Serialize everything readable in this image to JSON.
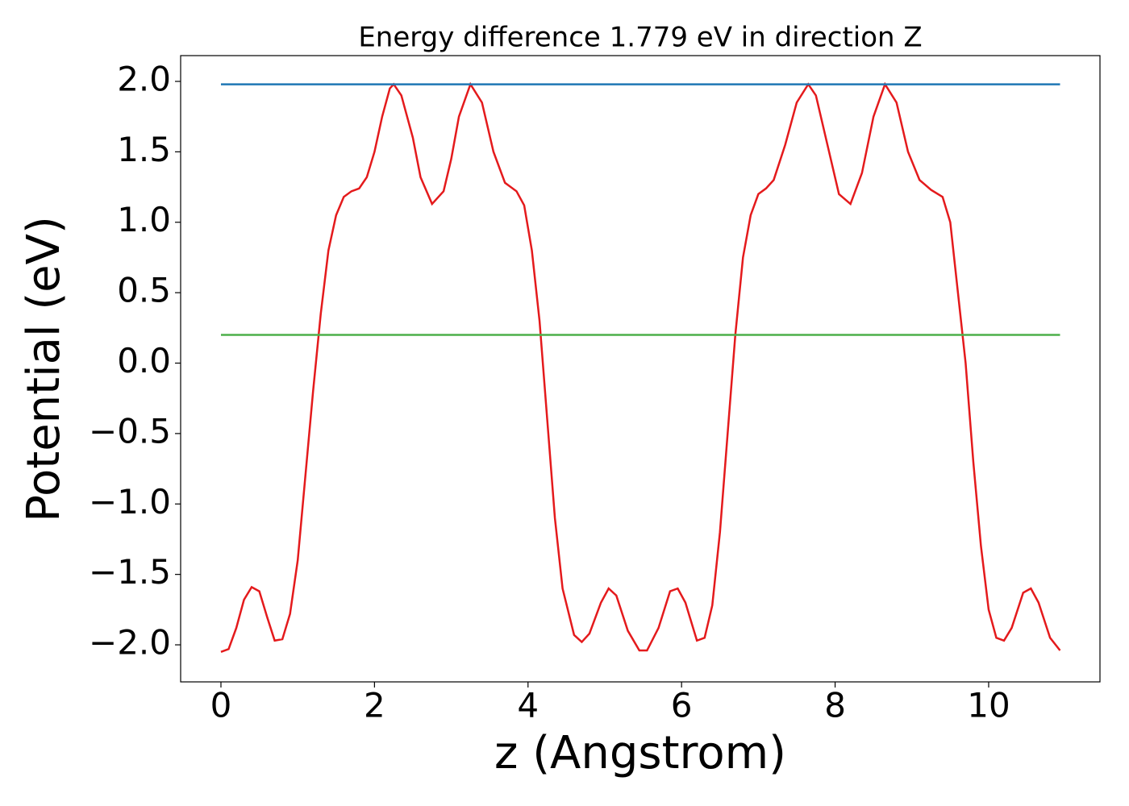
{
  "chart_data": {
    "type": "line",
    "title": "Energy difference 1.779 eV in direction Z",
    "x_label": "z (Angstrom)",
    "y_label": "Potential (eV)",
    "xlim": [
      -0.525,
      11.45
    ],
    "ylim": [
      -2.263,
      2.183
    ],
    "xticks": [
      0,
      2,
      4,
      6,
      8,
      10
    ],
    "yticks": [
      {
        "value": -2.0,
        "label": "−2.0"
      },
      {
        "value": -1.5,
        "label": "−1.5"
      },
      {
        "value": -1.0,
        "label": "−1.0"
      },
      {
        "value": -0.5,
        "label": "−0.5"
      },
      {
        "value": 0.0,
        "label": "0.0"
      },
      {
        "value": 0.5,
        "label": "0.5"
      },
      {
        "value": 1.0,
        "label": "1.0"
      },
      {
        "value": 1.5,
        "label": "1.5"
      },
      {
        "value": 2.0,
        "label": "2.0"
      }
    ],
    "grid": false,
    "series": [
      {
        "color": "#e41a1c",
        "x": [
          0,
          0.1,
          0.2,
          0.3,
          0.4,
          0.5,
          0.6,
          0.7,
          0.8,
          0.9,
          1.0,
          1.1,
          1.2,
          1.3,
          1.4,
          1.5,
          1.6,
          1.7,
          1.8,
          1.9,
          2.0,
          2.1,
          2.2,
          2.25,
          2.35,
          2.5,
          2.6,
          2.75,
          2.9,
          3.0,
          3.1,
          3.25,
          3.4,
          3.55,
          3.7,
          3.85,
          3.95,
          4.05,
          4.15,
          4.25,
          4.35,
          4.45,
          4.6,
          4.7,
          4.8,
          4.95,
          5.05,
          5.15,
          5.3,
          5.45,
          5.55,
          5.7,
          5.85,
          5.95,
          6.05,
          6.2,
          6.3,
          6.4,
          6.5,
          6.6,
          6.7,
          6.8,
          6.9,
          7.0,
          7.1,
          7.2,
          7.35,
          7.5,
          7.65,
          7.75,
          7.9,
          8.05,
          8.2,
          8.35,
          8.5,
          8.65,
          8.8,
          8.95,
          9.1,
          9.25,
          9.4,
          9.5,
          9.6,
          9.7,
          9.8,
          9.9,
          10.0,
          10.1,
          10.2,
          10.3,
          10.45,
          10.55,
          10.65,
          10.8,
          10.93
        ],
        "values": [
          -2.05,
          -2.03,
          -1.88,
          -1.68,
          -1.59,
          -1.62,
          -1.8,
          -1.97,
          -1.96,
          -1.78,
          -1.4,
          -0.8,
          -0.2,
          0.35,
          0.8,
          1.05,
          1.18,
          1.22,
          1.24,
          1.32,
          1.5,
          1.75,
          1.95,
          1.98,
          1.9,
          1.6,
          1.32,
          1.13,
          1.22,
          1.45,
          1.75,
          1.98,
          1.85,
          1.5,
          1.28,
          1.22,
          1.12,
          0.8,
          0.3,
          -0.4,
          -1.1,
          -1.6,
          -1.93,
          -1.98,
          -1.92,
          -1.7,
          -1.6,
          -1.65,
          -1.9,
          -2.04,
          -2.04,
          -1.88,
          -1.62,
          -1.6,
          -1.7,
          -1.97,
          -1.95,
          -1.72,
          -1.2,
          -0.5,
          0.2,
          0.75,
          1.05,
          1.2,
          1.24,
          1.3,
          1.55,
          1.85,
          1.98,
          1.9,
          1.55,
          1.2,
          1.13,
          1.35,
          1.75,
          1.98,
          1.85,
          1.5,
          1.3,
          1.23,
          1.18,
          1.0,
          0.5,
          0.0,
          -0.7,
          -1.3,
          -1.75,
          -1.95,
          -1.97,
          -1.88,
          -1.63,
          -1.6,
          -1.7,
          -1.95,
          -2.04
        ]
      },
      {
        "color": "#1f77b4",
        "x": [
          0,
          10.93
        ],
        "values": [
          1.979,
          1.979
        ]
      },
      {
        "color": "#4daf4a",
        "x": [
          0,
          10.93
        ],
        "values": [
          0.2,
          0.2
        ]
      }
    ]
  }
}
